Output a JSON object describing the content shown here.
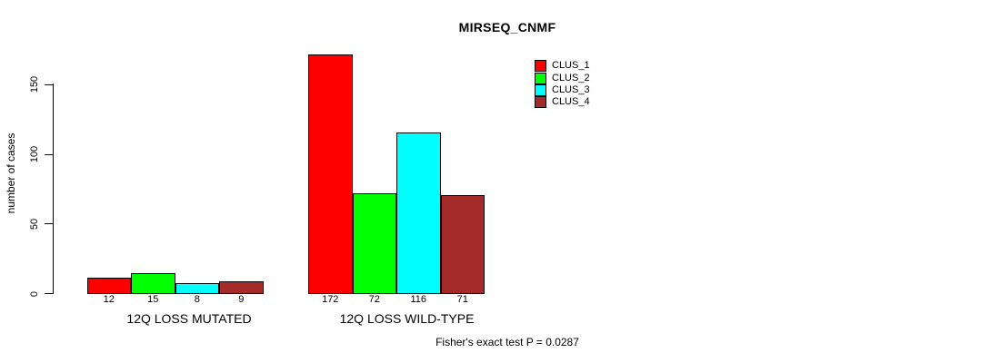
{
  "chart_data": {
    "type": "bar",
    "title": "MIRSEQ_CNMF",
    "ylabel": "number of cases",
    "xlabel": "",
    "categories": [
      "12Q LOSS MUTATED",
      "12Q LOSS WILD-TYPE"
    ],
    "series": [
      {
        "name": "CLUS_1",
        "color": "#FF0000",
        "values": [
          12,
          172
        ]
      },
      {
        "name": "CLUS_2",
        "color": "#00FF00",
        "values": [
          15,
          72
        ]
      },
      {
        "name": "CLUS_3",
        "color": "#00FFFF",
        "values": [
          8,
          116
        ]
      },
      {
        "name": "CLUS_4",
        "color": "#A52A2A",
        "values": [
          9,
          71
        ]
      }
    ],
    "bar_value_labels_shown": true,
    "yticks": [
      0,
      50,
      100,
      150
    ],
    "ylim": [
      0,
      172
    ],
    "grid": false,
    "legend_position": "top-right",
    "annotation": "Fisher's exact test P = 0.0287",
    "background_color": "#FFFFFF",
    "axis_color": "#000000"
  }
}
